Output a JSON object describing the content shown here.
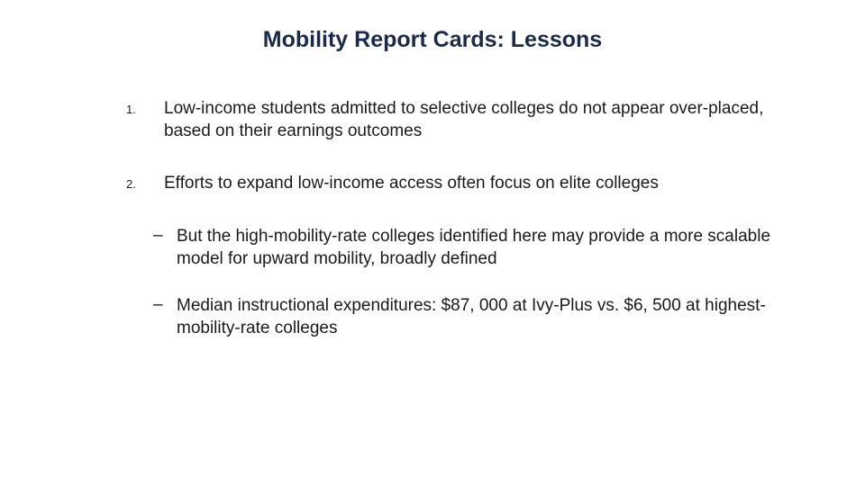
{
  "title_color": "#1a2a4a",
  "text_color": "#1a1a1a",
  "background_color": "#ffffff",
  "title_fontsize": 25,
  "body_fontsize": 19,
  "number_fontsize": 13,
  "title": "Mobility Report Cards: Lessons",
  "items": [
    {
      "num": "1.",
      "text": "Low-income students admitted to selective colleges do not appear over-placed, based on their earnings outcomes"
    },
    {
      "num": "2.",
      "text": "Efforts to expand low-income access often focus on elite colleges"
    }
  ],
  "subitems": [
    {
      "dash": "–",
      "text": "But the high-mobility-rate colleges identified here may provide a more scalable model for upward mobility, broadly defined"
    },
    {
      "dash": "–",
      "text": "Median instructional expenditures: $87, 000 at Ivy-Plus vs. $6, 500 at highest-mobility-rate colleges"
    }
  ]
}
